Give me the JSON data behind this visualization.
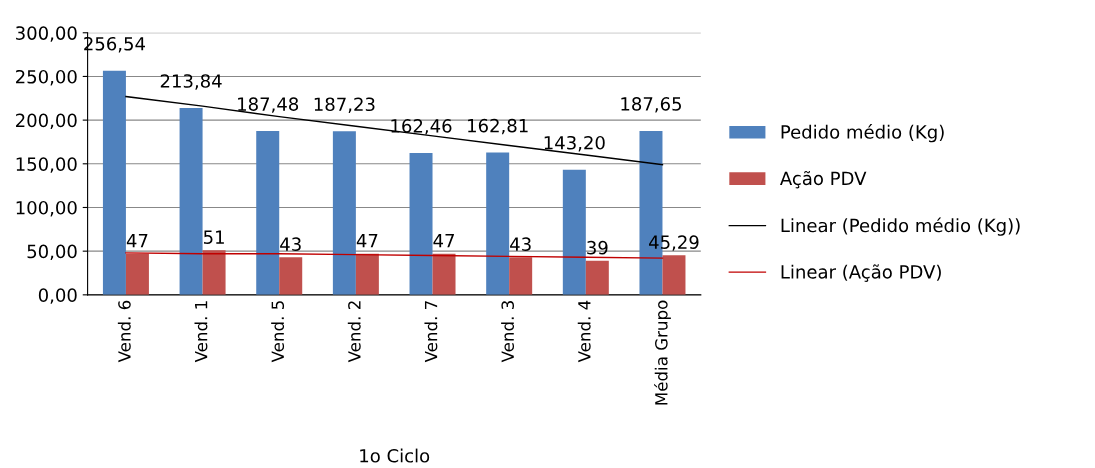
{
  "chart_data": {
    "type": "bar",
    "categories": [
      "Vend. 6",
      "Vend. 1",
      "Vend. 5",
      "Vend. 2",
      "Vend. 7",
      "Vend. 3",
      "Vend. 4",
      "Média Grupo"
    ],
    "series": [
      {
        "name": "Pedido médio (Kg)",
        "color": "#4f81bd",
        "values": [
          256.54,
          213.84,
          187.48,
          187.23,
          162.46,
          162.81,
          143.2,
          187.65
        ],
        "value_labels": [
          "256,54",
          "213,84",
          "187,48",
          "187,23",
          "162,46",
          "162,81",
          "143,20",
          "187,65"
        ]
      },
      {
        "name": "Ação PDV",
        "color": "#c0504d",
        "values": [
          47,
          51,
          43,
          47,
          47,
          43,
          39,
          45.29
        ],
        "value_labels": [
          "47",
          "51",
          "43",
          "47",
          "47",
          "43",
          "39",
          "45,29"
        ]
      },
      {
        "name": "Linear (Pedido médio (Kg))",
        "type": "line",
        "color": "#000000",
        "values": [
          227,
          216,
          204,
          193,
          182,
          171,
          160,
          149
        ]
      },
      {
        "name": "Linear (Ação PDV)",
        "type": "line",
        "color": "#c00000",
        "values": [
          48,
          47,
          47,
          46,
          45,
          44,
          43,
          42
        ]
      }
    ],
    "ylim": [
      0,
      300
    ],
    "yticks": [
      {
        "value": 0,
        "label": "0,00"
      },
      {
        "value": 50,
        "label": "50,00"
      },
      {
        "value": 100,
        "label": "100,00"
      },
      {
        "value": 150,
        "label": "150,00"
      },
      {
        "value": 200,
        "label": "200,00"
      },
      {
        "value": 250,
        "label": "250,00"
      },
      {
        "value": 300,
        "label": "300,00"
      }
    ],
    "grid": "y",
    "legend": "right",
    "annotations": [
      "1o Ciclo"
    ]
  }
}
